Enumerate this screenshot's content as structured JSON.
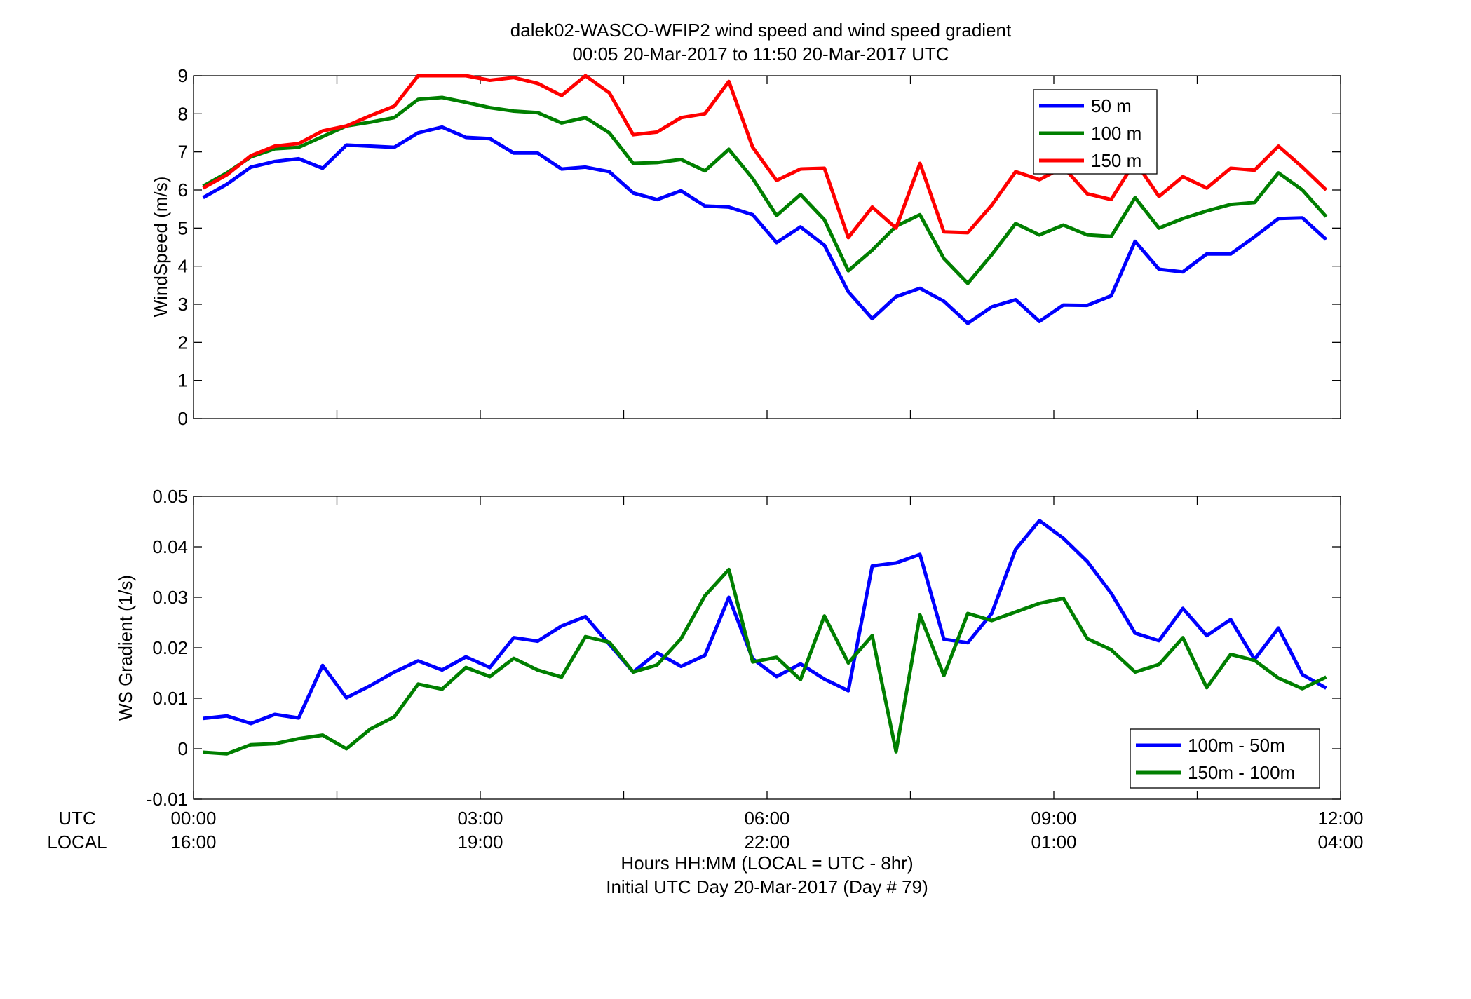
{
  "figure": {
    "title_line1": "dalek02-WASCO-WFIP2  wind speed and wind speed gradient",
    "title_line2": "00:05 20-Mar-2017 to 11:50 20-Mar-2017  UTC",
    "row_label_utc": "UTC",
    "row_label_local": "LOCAL",
    "xlabel_line1": "Hours HH:MM  (LOCAL = UTC - 8hr)",
    "xlabel_line2": "Initial UTC Day 20-Mar-2017 (Day # 79)"
  },
  "chart_data": [
    {
      "type": "line",
      "ylabel": "WindSpeed (m/s)",
      "xlim": [
        0,
        12
      ],
      "ylim": [
        0,
        9
      ],
      "yticks": [
        "0",
        "1",
        "2",
        "3",
        "4",
        "5",
        "6",
        "7",
        "8",
        "9"
      ],
      "x_unit": "hours UTC",
      "legend_position": "top-right",
      "x": [
        0.1,
        0.35,
        0.6,
        0.85,
        1.1,
        1.35,
        1.6,
        1.85,
        2.1,
        2.35,
        2.6,
        2.85,
        3.1,
        3.35,
        3.6,
        3.85,
        4.1,
        4.35,
        4.6,
        4.85,
        5.1,
        5.35,
        5.6,
        5.85,
        6.1,
        6.35,
        6.6,
        6.85,
        7.1,
        7.35,
        7.6,
        7.85,
        8.1,
        8.35,
        8.6,
        8.85,
        9.1,
        9.35,
        9.6,
        9.85,
        10.1,
        10.35,
        10.6,
        10.85,
        11.1,
        11.35,
        11.6,
        11.85
      ],
      "series": [
        {
          "name": "50 m",
          "color": "#0000ff",
          "values": [
            5.8,
            6.15,
            6.6,
            6.75,
            6.82,
            6.57,
            7.18,
            7.15,
            7.12,
            7.5,
            7.65,
            7.38,
            7.35,
            6.97,
            6.97,
            6.55,
            6.6,
            6.48,
            5.92,
            5.75,
            5.98,
            5.58,
            5.55,
            5.35,
            4.62,
            5.03,
            4.55,
            3.33,
            2.62,
            3.2,
            3.42,
            3.08,
            2.5,
            2.93,
            3.12,
            2.55,
            2.98,
            2.97,
            3.22,
            4.65,
            3.92,
            3.85,
            4.32,
            4.32,
            4.77,
            5.25,
            5.27,
            4.7
          ]
        },
        {
          "name": "100 m",
          "color": "#007f00",
          "values": [
            6.1,
            6.45,
            6.87,
            7.08,
            7.12,
            7.4,
            7.68,
            7.78,
            7.9,
            8.38,
            8.43,
            8.3,
            8.16,
            8.07,
            8.03,
            7.76,
            7.9,
            7.5,
            6.7,
            6.72,
            6.8,
            6.5,
            7.07,
            6.3,
            5.33,
            5.88,
            5.22,
            3.88,
            4.42,
            5.05,
            5.35,
            4.2,
            3.55,
            4.3,
            5.12,
            4.82,
            5.08,
            4.82,
            4.78,
            5.8,
            5.0,
            5.25,
            5.45,
            5.62,
            5.67,
            6.45,
            6.0,
            5.3
          ]
        },
        {
          "name": "150 m",
          "color": "#ff0000",
          "values": [
            6.05,
            6.4,
            6.9,
            7.15,
            7.22,
            7.55,
            7.68,
            7.95,
            8.2,
            9.05,
            9.0,
            9.05,
            8.88,
            8.95,
            8.8,
            8.48,
            9.0,
            8.55,
            7.45,
            7.52,
            7.9,
            8.0,
            8.85,
            7.12,
            6.25,
            6.55,
            6.57,
            4.75,
            5.55,
            5.0,
            6.7,
            4.9,
            4.88,
            5.6,
            6.48,
            6.27,
            6.6,
            5.9,
            5.75,
            6.75,
            5.83,
            6.35,
            6.05,
            6.57,
            6.52,
            7.15,
            6.6,
            6.0
          ]
        }
      ]
    },
    {
      "type": "line",
      "ylabel": "WS Gradient (1/s)",
      "xlim": [
        0,
        12
      ],
      "ylim": [
        -0.01,
        0.05
      ],
      "yticks": [
        "-0.01",
        "0",
        "0.01",
        "0.02",
        "0.03",
        "0.04",
        "0.05"
      ],
      "x_unit": "hours UTC",
      "xticks_utc": [
        "00:00",
        "03:00",
        "06:00",
        "09:00",
        "12:00"
      ],
      "xticks_local": [
        "16:00",
        "19:00",
        "22:00",
        "01:00",
        "04:00"
      ],
      "legend_position": "bottom-right",
      "x": [
        0.1,
        0.35,
        0.6,
        0.85,
        1.1,
        1.35,
        1.6,
        1.85,
        2.1,
        2.35,
        2.6,
        2.85,
        3.1,
        3.35,
        3.6,
        3.85,
        4.1,
        4.35,
        4.6,
        4.85,
        5.1,
        5.35,
        5.6,
        5.85,
        6.1,
        6.35,
        6.6,
        6.85,
        7.1,
        7.35,
        7.6,
        7.85,
        8.1,
        8.35,
        8.6,
        8.85,
        9.1,
        9.35,
        9.6,
        9.85,
        10.1,
        10.35,
        10.6,
        10.85,
        11.1,
        11.35,
        11.6,
        11.85
      ],
      "series": [
        {
          "name": "100m - 50m",
          "color": "#0000ff",
          "values": [
            0.006,
            0.0065,
            0.005,
            0.0068,
            0.0061,
            0.0165,
            0.0101,
            0.0125,
            0.0152,
            0.0174,
            0.0156,
            0.0182,
            0.0161,
            0.022,
            0.0213,
            0.0243,
            0.0262,
            0.0207,
            0.0152,
            0.019,
            0.0163,
            0.0185,
            0.03,
            0.0178,
            0.0143,
            0.0168,
            0.0138,
            0.0115,
            0.0362,
            0.0368,
            0.0385,
            0.0217,
            0.021,
            0.0268,
            0.0395,
            0.0452,
            0.0417,
            0.0371,
            0.0308,
            0.0229,
            0.0214,
            0.0278,
            0.0224,
            0.0256,
            0.0177,
            0.0239,
            0.0147,
            0.012
          ]
        },
        {
          "name": "150m - 100m",
          "color": "#007f00",
          "values": [
            -0.0007,
            -0.001,
            0.0008,
            0.001,
            0.002,
            0.0027,
            0.0,
            0.0039,
            0.0063,
            0.0128,
            0.0118,
            0.0161,
            0.0143,
            0.0179,
            0.0156,
            0.0142,
            0.0222,
            0.0211,
            0.0152,
            0.0166,
            0.0218,
            0.0303,
            0.0355,
            0.0172,
            0.0181,
            0.0137,
            0.0263,
            0.017,
            0.0224,
            -0.0006,
            0.0265,
            0.0145,
            0.0268,
            0.0254,
            0.0271,
            0.0288,
            0.0298,
            0.0218,
            0.0196,
            0.0152,
            0.0167,
            0.022,
            0.0121,
            0.0187,
            0.0175,
            0.014,
            0.0119,
            0.0142
          ]
        }
      ]
    }
  ]
}
